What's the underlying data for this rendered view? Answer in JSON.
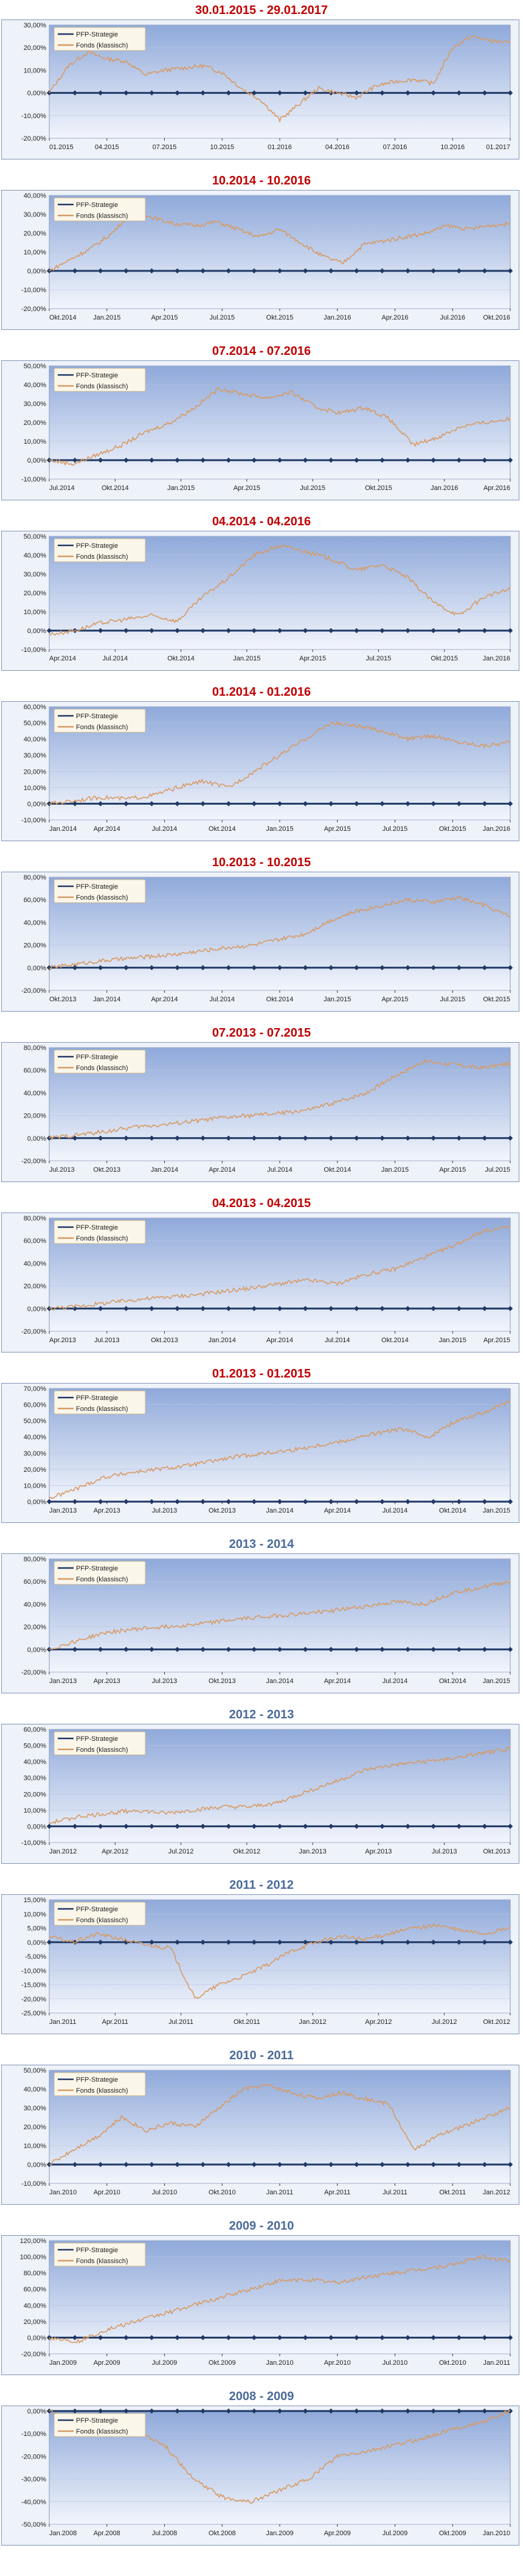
{
  "colors": {
    "title_red": "#c00000",
    "title_blue": "#4a6a9a",
    "fonds_line": "#d79a63",
    "pfp_line": "#1f3864",
    "plot_top": "#8fa9da",
    "plot_bottom": "#f2f5fc"
  },
  "legend_labels": [
    "PFP-Strategie",
    "Fonds (klassisch)"
  ],
  "chart_data": [
    {
      "type": "line",
      "title": "30.01.2015 - 29.01.2017",
      "title_color": "red",
      "ylim": [
        -20,
        30
      ],
      "yticks": [
        "-20,00%",
        "-10,00%",
        "0,00%",
        "10,00%",
        "20,00%",
        "30,00%"
      ],
      "xticks": [
        "01.2015",
        "04.2015",
        "07.2015",
        "10.2015",
        "01.2016",
        "04.2016",
        "07.2016",
        "10.2016",
        "01.2017"
      ],
      "series": [
        {
          "name": "Fonds (klassisch)",
          "values": [
            0,
            12,
            18,
            15,
            14,
            8,
            10,
            11,
            12,
            9,
            2,
            -3,
            -12,
            -5,
            2,
            0,
            -2,
            3,
            5,
            6,
            4,
            20,
            25,
            23,
            22
          ]
        },
        {
          "name": "PFP-Strategie",
          "values": [
            0,
            0,
            0,
            0,
            0,
            0,
            0,
            0,
            0,
            0,
            0,
            0,
            0,
            0,
            0,
            0,
            0,
            0,
            0,
            0,
            0,
            0,
            0,
            0,
            0
          ]
        }
      ]
    },
    {
      "type": "line",
      "title": "10.2014 - 10.2016",
      "title_color": "red",
      "ylim": [
        -20,
        40
      ],
      "yticks": [
        "-20,00%",
        "-10,00%",
        "0,00%",
        "10,00%",
        "20,00%",
        "30,00%",
        "40,00%"
      ],
      "xticks": [
        "Okt.2014",
        "Jan.2015",
        "Apr.2015",
        "Jul.2015",
        "Okt.2015",
        "Jan.2016",
        "Apr.2016",
        "Jul.2016",
        "Okt.2016"
      ],
      "series": [
        {
          "name": "Fonds (klassisch)",
          "values": [
            0,
            6,
            12,
            20,
            32,
            28,
            25,
            24,
            26,
            22,
            18,
            22,
            15,
            8,
            4,
            14,
            16,
            18,
            20,
            24,
            22,
            24,
            25
          ]
        },
        {
          "name": "PFP-Strategie",
          "values": [
            0,
            0,
            0,
            0,
            0,
            0,
            0,
            0,
            0,
            0,
            0,
            0,
            0,
            0,
            0,
            0,
            0,
            0,
            0,
            0,
            0,
            0,
            0
          ]
        }
      ]
    },
    {
      "type": "line",
      "title": "07.2014 - 07.2016",
      "title_color": "red",
      "ylim": [
        -10,
        50
      ],
      "yticks": [
        "-10,00%",
        "0,00%",
        "10,00%",
        "20,00%",
        "30,00%",
        "40,00%",
        "50,00%"
      ],
      "xticks": [
        "Jul.2014",
        "Okt.2014",
        "Jan.2015",
        "Apr.2015",
        "Jul.2015",
        "Okt.2015",
        "Jan.2016",
        "Apr.2016"
      ],
      "series": [
        {
          "name": "Fonds (klassisch)",
          "values": [
            0,
            -2,
            3,
            8,
            15,
            20,
            28,
            38,
            35,
            33,
            36,
            28,
            25,
            28,
            22,
            8,
            12,
            18,
            20,
            22
          ]
        },
        {
          "name": "PFP-Strategie",
          "values": [
            0,
            0,
            0,
            0,
            0,
            0,
            0,
            0,
            0,
            0,
            0,
            0,
            0,
            0,
            0,
            0,
            0,
            0,
            0,
            0
          ]
        }
      ]
    },
    {
      "type": "line",
      "title": "04.2014 - 04.2016",
      "title_color": "red",
      "ylim": [
        -10,
        50
      ],
      "yticks": [
        "-10,00%",
        "0,00%",
        "10,00%",
        "20,00%",
        "30,00%",
        "40,00%",
        "50,00%"
      ],
      "xticks": [
        "Apr.2014",
        "Jul.2014",
        "Okt.2014",
        "Jan.2015",
        "Apr.2015",
        "Jul.2015",
        "Okt.2015",
        "Jan.2016"
      ],
      "series": [
        {
          "name": "Fonds (klassisch)",
          "values": [
            -2,
            0,
            4,
            6,
            8,
            5,
            18,
            28,
            40,
            45,
            42,
            38,
            32,
            35,
            28,
            15,
            8,
            18,
            22
          ]
        },
        {
          "name": "PFP-Strategie",
          "values": [
            0,
            0,
            0,
            0,
            0,
            0,
            0,
            0,
            0,
            0,
            0,
            0,
            0,
            0,
            0,
            0,
            0,
            0,
            0
          ]
        }
      ]
    },
    {
      "type": "line",
      "title": "01.2014 - 01.2016",
      "title_color": "red",
      "ylim": [
        -10,
        60
      ],
      "yticks": [
        "-10,00%",
        "0,00%",
        "10,00%",
        "20,00%",
        "30,00%",
        "40,00%",
        "50,00%",
        "60,00%"
      ],
      "xticks": [
        "Jan.2014",
        "Apr.2014",
        "Jul.2014",
        "Okt.2014",
        "Jan.2015",
        "Apr.2015",
        "Jul.2015",
        "Okt.2015",
        "Jan.2016"
      ],
      "series": [
        {
          "name": "Fonds (klassisch)",
          "values": [
            0,
            2,
            4,
            3,
            5,
            10,
            14,
            10,
            20,
            30,
            40,
            50,
            48,
            45,
            40,
            42,
            38,
            36,
            38
          ]
        },
        {
          "name": "PFP-Strategie",
          "values": [
            0,
            0,
            0,
            0,
            0,
            0,
            0,
            0,
            0,
            0,
            0,
            0,
            0,
            0,
            0,
            0,
            0,
            0,
            0
          ]
        }
      ]
    },
    {
      "type": "line",
      "title": "10.2013 - 10.2015",
      "title_color": "red",
      "ylim": [
        -20,
        80
      ],
      "yticks": [
        "-20,00%",
        "0,00%",
        "20,00%",
        "40,00%",
        "60,00%",
        "80,00%"
      ],
      "xticks": [
        "Okt.2013",
        "Jan.2014",
        "Apr.2014",
        "Jul.2014",
        "Okt.2014",
        "Jan.2015",
        "Apr.2015",
        "Jul.2015",
        "Okt.2015"
      ],
      "series": [
        {
          "name": "Fonds (klassisch)",
          "values": [
            0,
            3,
            6,
            8,
            10,
            12,
            15,
            18,
            20,
            25,
            30,
            42,
            50,
            55,
            60,
            58,
            62,
            55,
            45
          ]
        },
        {
          "name": "PFP-Strategie",
          "values": [
            0,
            0,
            0,
            0,
            0,
            0,
            0,
            0,
            0,
            0,
            0,
            0,
            0,
            0,
            0,
            0,
            0,
            0,
            0
          ]
        }
      ]
    },
    {
      "type": "line",
      "title": "07.2013 - 07.2015",
      "title_color": "red",
      "ylim": [
        -20,
        80
      ],
      "yticks": [
        "-20,00%",
        "0,00%",
        "20,00%",
        "40,00%",
        "60,00%",
        "80,00%"
      ],
      "xticks": [
        "Jul.2013",
        "Okt.2013",
        "Jan.2014",
        "Apr.2014",
        "Jul.2014",
        "Okt.2014",
        "Jan.2015",
        "Apr.2015",
        "Jul.2015"
      ],
      "series": [
        {
          "name": "Fonds (klassisch)",
          "values": [
            0,
            3,
            6,
            10,
            12,
            15,
            18,
            20,
            22,
            25,
            32,
            40,
            55,
            68,
            65,
            62,
            66
          ]
        },
        {
          "name": "PFP-Strategie",
          "values": [
            0,
            0,
            0,
            0,
            0,
            0,
            0,
            0,
            0,
            0,
            0,
            0,
            0,
            0,
            0,
            0,
            0
          ]
        }
      ]
    },
    {
      "type": "line",
      "title": "04.2013 - 04.2015",
      "title_color": "red",
      "ylim": [
        -20,
        80
      ],
      "yticks": [
        "-20,00%",
        "0,00%",
        "20,00%",
        "40,00%",
        "60,00%",
        "80,00%"
      ],
      "xticks": [
        "Apr.2013",
        "Jul.2013",
        "Okt.2013",
        "Jan.2014",
        "Apr.2014",
        "Jul.2014",
        "Okt.2014",
        "Jan.2015",
        "Apr.2015"
      ],
      "series": [
        {
          "name": "Fonds (klassisch)",
          "values": [
            0,
            2,
            5,
            8,
            10,
            12,
            15,
            18,
            22,
            25,
            22,
            30,
            35,
            45,
            55,
            68,
            72
          ]
        },
        {
          "name": "PFP-Strategie",
          "values": [
            0,
            0,
            0,
            0,
            0,
            0,
            0,
            0,
            0,
            0,
            0,
            0,
            0,
            0,
            0,
            0,
            0
          ]
        }
      ]
    },
    {
      "type": "line",
      "title": "01.2013 - 01.2015",
      "title_color": "red",
      "ylim": [
        0,
        70
      ],
      "yticks": [
        "0,00%",
        "10,00%",
        "20,00%",
        "30,00%",
        "40,00%",
        "50,00%",
        "60,00%",
        "70,00%"
      ],
      "xticks": [
        "Jan.2013",
        "Apr.2013",
        "Jul.2013",
        "Okt.2013",
        "Jan.2014",
        "Apr.2014",
        "Jul.2014",
        "Okt.2014",
        "Jan.2015"
      ],
      "series": [
        {
          "name": "Fonds (klassisch)",
          "values": [
            2,
            8,
            15,
            18,
            20,
            22,
            25,
            28,
            30,
            32,
            35,
            38,
            42,
            45,
            40,
            50,
            55,
            62
          ]
        },
        {
          "name": "PFP-Strategie",
          "values": [
            0,
            0,
            0,
            0,
            0,
            0,
            0,
            0,
            0,
            0,
            0,
            0,
            0,
            0,
            0,
            0,
            0,
            0
          ]
        }
      ]
    },
    {
      "type": "line",
      "title": "2013 - 2014",
      "title_color": "blue",
      "ylim": [
        -20,
        80
      ],
      "yticks": [
        "-20,00%",
        "0,00%",
        "20,00%",
        "40,00%",
        "60,00%",
        "80,00%"
      ],
      "xticks": [
        "Jan.2013",
        "Apr.2013",
        "Jul.2013",
        "Okt.2013",
        "Jan.2014",
        "Apr.2014",
        "Jul.2014",
        "Okt.2014",
        "Jan.2015"
      ],
      "series": [
        {
          "name": "Fonds (klassisch)",
          "values": [
            0,
            8,
            15,
            18,
            20,
            22,
            25,
            28,
            30,
            32,
            35,
            38,
            42,
            40,
            50,
            55,
            60
          ]
        },
        {
          "name": "PFP-Strategie",
          "values": [
            0,
            0,
            0,
            0,
            0,
            0,
            0,
            0,
            0,
            0,
            0,
            0,
            0,
            0,
            0,
            0,
            0
          ]
        }
      ]
    },
    {
      "type": "line",
      "title": "2012 - 2013",
      "title_color": "blue",
      "ylim": [
        -10,
        60
      ],
      "yticks": [
        "-10,00%",
        "0,00%",
        "10,00%",
        "20,00%",
        "30,00%",
        "40,00%",
        "50,00%",
        "60,00%"
      ],
      "xticks": [
        "Jan.2012",
        "Apr.2012",
        "Jul.2012",
        "Okt.2012",
        "Jan.2013",
        "Apr.2013",
        "Jul.2013",
        "Okt.2013"
      ],
      "series": [
        {
          "name": "Fonds (klassisch)",
          "values": [
            2,
            6,
            8,
            10,
            8,
            10,
            12,
            12,
            15,
            22,
            28,
            35,
            38,
            40,
            42,
            45,
            48
          ]
        },
        {
          "name": "PFP-Strategie",
          "values": [
            0,
            0,
            0,
            0,
            0,
            0,
            0,
            0,
            0,
            0,
            0,
            0,
            0,
            0,
            0,
            0,
            0
          ]
        }
      ]
    },
    {
      "type": "line",
      "title": "2011 - 2012",
      "title_color": "blue",
      "ylim": [
        -25,
        15
      ],
      "yticks": [
        "-25,00%",
        "-20,00%",
        "-15,00%",
        "-10,00%",
        "-5,00%",
        "0,00%",
        "5,00%",
        "10,00%",
        "15,00%"
      ],
      "xticks": [
        "Jan.2011",
        "Apr.2011",
        "Jul.2011",
        "Okt.2011",
        "Jan.2012",
        "Apr.2012",
        "Jul.2012",
        "Okt.2012"
      ],
      "series": [
        {
          "name": "Fonds (klassisch)",
          "values": [
            2,
            0,
            3,
            1,
            -1,
            -2,
            -20,
            -15,
            -12,
            -8,
            -3,
            0,
            2,
            1,
            3,
            5,
            6,
            4,
            3,
            5
          ]
        },
        {
          "name": "PFP-Strategie",
          "values": [
            0,
            0,
            0,
            0,
            0,
            0,
            0,
            0,
            0,
            0,
            0,
            0,
            0,
            0,
            0,
            0,
            0,
            0,
            0,
            0
          ]
        }
      ]
    },
    {
      "type": "line",
      "title": "2010 - 2011",
      "title_color": "blue",
      "ylim": [
        -10,
        50
      ],
      "yticks": [
        "-10,00%",
        "0,00%",
        "10,00%",
        "20,00%",
        "30,00%",
        "40,00%",
        "50,00%"
      ],
      "xticks": [
        "Jan.2010",
        "Apr.2010",
        "Jul.2010",
        "Okt.2010",
        "Jan.2011",
        "Apr.2011",
        "Jul.2011",
        "Okt.2011",
        "Jan.2012"
      ],
      "series": [
        {
          "name": "Fonds (klassisch)",
          "values": [
            0,
            8,
            15,
            25,
            18,
            22,
            20,
            30,
            40,
            42,
            38,
            35,
            38,
            35,
            32,
            8,
            15,
            20,
            25,
            30
          ]
        },
        {
          "name": "PFP-Strategie",
          "values": [
            0,
            0,
            0,
            0,
            0,
            0,
            0,
            0,
            0,
            0,
            0,
            0,
            0,
            0,
            0,
            0,
            0,
            0,
            0,
            0
          ]
        }
      ]
    },
    {
      "type": "line",
      "title": "2009 - 2010",
      "title_color": "blue",
      "ylim": [
        -20,
        120
      ],
      "yticks": [
        "-20,00%",
        "0,00%",
        "20,00%",
        "40,00%",
        "60,00%",
        "80,00%",
        "100,00%",
        "120,00%"
      ],
      "xticks": [
        "Jan.2009",
        "Apr.2009",
        "Jul.2009",
        "Okt.2009",
        "Jan.2010",
        "Apr.2010",
        "Jul.2010",
        "Okt.2010",
        "Jan.2011"
      ],
      "series": [
        {
          "name": "Fonds (klassisch)",
          "values": [
            0,
            -5,
            10,
            20,
            30,
            40,
            50,
            60,
            70,
            72,
            68,
            75,
            80,
            85,
            90,
            100,
            95
          ]
        },
        {
          "name": "PFP-Strategie",
          "values": [
            0,
            0,
            0,
            0,
            0,
            0,
            0,
            0,
            0,
            0,
            0,
            0,
            0,
            0,
            0,
            0,
            0
          ]
        }
      ]
    },
    {
      "type": "line",
      "title": "2008 - 2009",
      "title_color": "blue",
      "ylim": [
        -50,
        0
      ],
      "yticks": [
        "-50,00%",
        "-40,00%",
        "-30,00%",
        "-20,00%",
        "-10,00%",
        "0,00%"
      ],
      "xticks": [
        "Jan.2008",
        "Apr.2008",
        "Jul.2008",
        "Okt.2008",
        "Jan.2009",
        "Apr.2009",
        "Jul.2009",
        "Okt.2009",
        "Jan.2010"
      ],
      "series": [
        {
          "name": "Fonds (klassisch)",
          "values": [
            0,
            -5,
            -10,
            -8,
            -15,
            -30,
            -38,
            -40,
            -35,
            -30,
            -20,
            -18,
            -15,
            -12,
            -8,
            -5,
            0
          ]
        },
        {
          "name": "PFP-Strategie",
          "values": [
            0,
            0,
            0,
            0,
            0,
            0,
            0,
            0,
            0,
            0,
            0,
            0,
            0,
            0,
            0,
            0,
            0
          ]
        }
      ]
    }
  ]
}
